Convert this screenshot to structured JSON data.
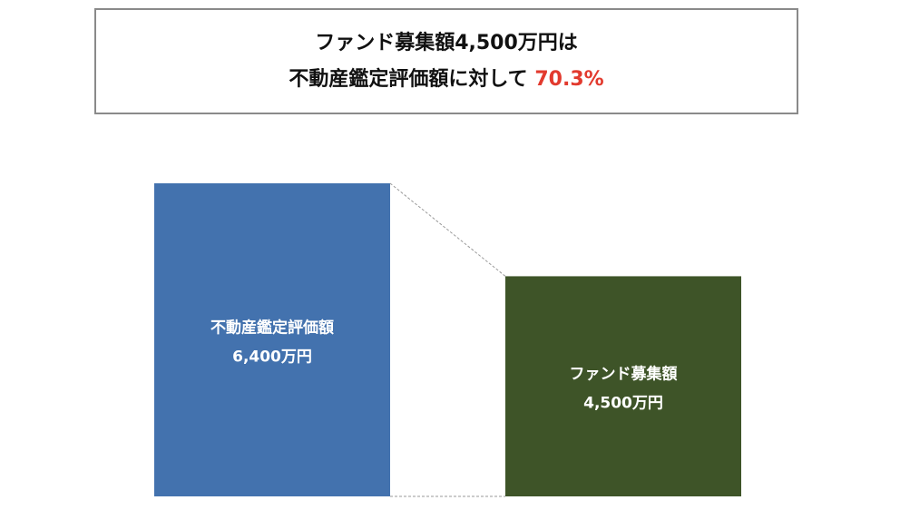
{
  "headline": {
    "line1": "ファンド募集額4,500万円は",
    "line2_prefix": "不動産鑑定評価額に対して ",
    "line2_highlight": "70.3%"
  },
  "colors": {
    "bar1": "#4372ae",
    "bar2": "#3e5428",
    "highlight": "#e23a2e",
    "connector": "#9a9a9a"
  },
  "chart_data": {
    "type": "bar",
    "categories": [
      "不動産鑑定評価額",
      "ファンド募集額"
    ],
    "values": [
      6400,
      4500
    ],
    "value_labels": [
      "6,400万円",
      "4,500万円"
    ],
    "unit": "万円",
    "ratio_label": "70.3%"
  }
}
